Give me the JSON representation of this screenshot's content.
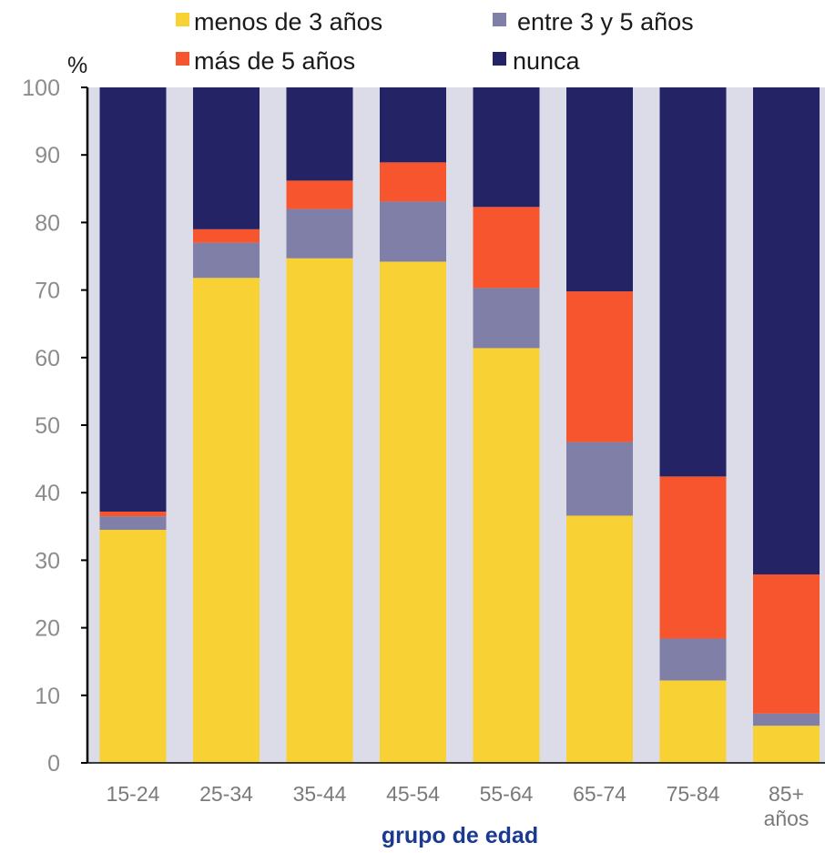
{
  "chart_data": {
    "type": "bar",
    "stacked": true,
    "categories": [
      "15-24",
      "25-34",
      "35-44",
      "45-54",
      "55-64",
      "65-74",
      "75-84",
      "85+ años"
    ],
    "category_lines": [
      [
        "15-24"
      ],
      [
        "25-34"
      ],
      [
        "35-44"
      ],
      [
        "45-54"
      ],
      [
        "55-64"
      ],
      [
        "65-74"
      ],
      [
        "75-84"
      ],
      [
        "85+",
        "años"
      ]
    ],
    "series": [
      {
        "name": "menos de 3 años",
        "color": "#f8d235",
        "values": [
          34.5,
          71.8,
          74.7,
          74.2,
          61.4,
          36.6,
          12.2,
          5.5
        ]
      },
      {
        "name": "entre 3 y 5 años",
        "color": "#7f7fa8",
        "values": [
          2.0,
          5.2,
          7.3,
          8.9,
          8.9,
          10.9,
          6.2,
          1.8
        ]
      },
      {
        "name": "más de 5 años",
        "color": "#f7552d",
        "values": [
          0.7,
          2.0,
          4.2,
          5.8,
          12.0,
          22.3,
          24.0,
          20.6
        ]
      },
      {
        "name": "nunca",
        "color": "#232365",
        "values": [
          62.8,
          21.0,
          13.8,
          11.1,
          17.7,
          30.2,
          57.6,
          72.1
        ]
      }
    ],
    "ylabel": "%",
    "xlabel": "grupo de edad",
    "ylim": [
      0,
      100
    ],
    "yticks": [
      0,
      10,
      20,
      30,
      40,
      50,
      60,
      70,
      80,
      90,
      100
    ],
    "legend_position": "top",
    "background_color": "#dcdce8",
    "xlabel_color": "#1a3a8f",
    "tick_color": "#8c8c8c"
  }
}
